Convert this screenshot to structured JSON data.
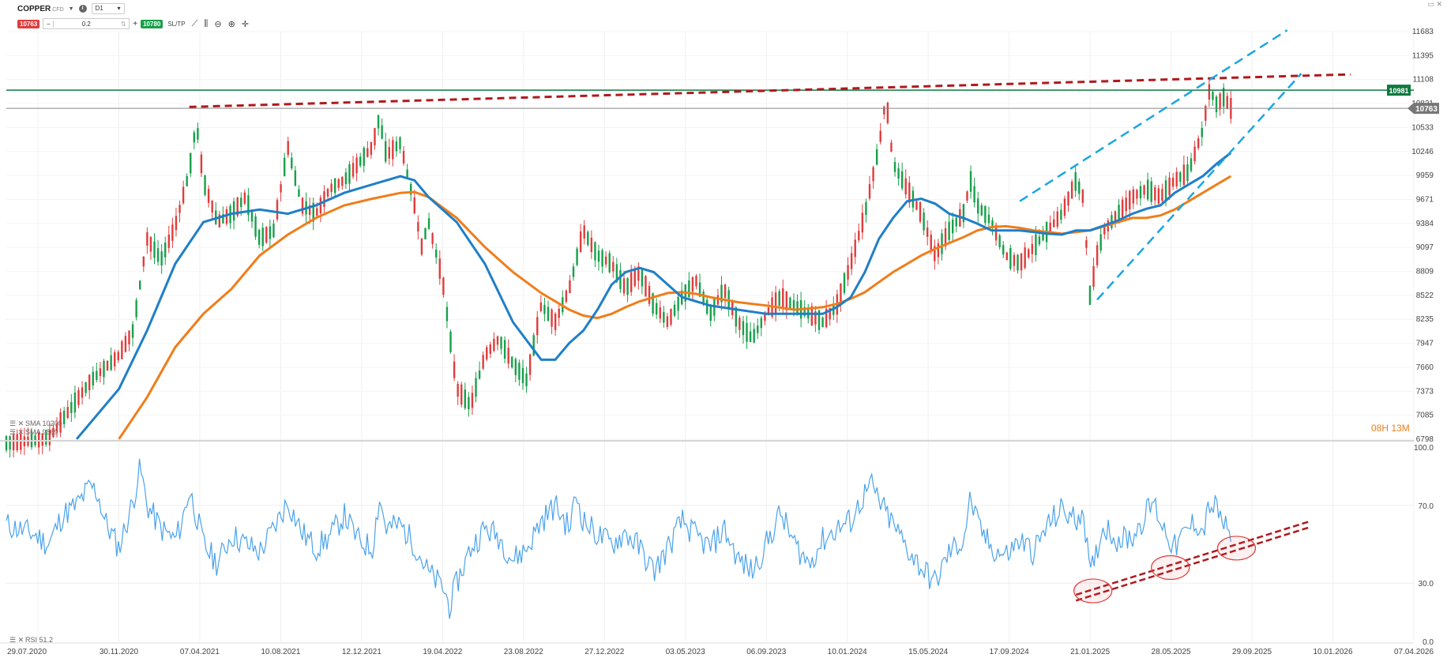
{
  "instrument": {
    "symbol": "COPPER",
    "type": "CFD",
    "timeframe": "D1"
  },
  "trade": {
    "sell_price": "10763",
    "volume": "0.2",
    "buy_price": "10780",
    "sltp_label": "SL/TP",
    "minus": "−",
    "plus": "+"
  },
  "icons": [
    "chevron-down-icon",
    "info-icon",
    "line-chart-icon",
    "candles-icon",
    "zoom-out-icon",
    "zoom-in-icon",
    "crosshair-icon"
  ],
  "colors": {
    "candle_up": "#17a04a",
    "candle_down": "#e03c3c",
    "sma_fast": "#1f7fc8",
    "sma_slow": "#f07d1a",
    "resistance": "#b0191e",
    "channel": "#1aa6e0",
    "rsi": "#4aa3ec",
    "level_line": "#0d7a3f"
  },
  "chart_data": [
    {
      "type": "line",
      "name": "price_panel",
      "y_ticks": [
        11683,
        11395,
        11108,
        10821,
        10533,
        10246,
        9959,
        9671,
        9384,
        9097,
        8809,
        8522,
        8235,
        7947,
        7660,
        7373,
        7085,
        6798
      ],
      "ylim": [
        6798,
        11683
      ],
      "x_dates": [
        "29.07.2020",
        "30.11.2020",
        "07.04.2021",
        "10.08.2021",
        "12.12.2021",
        "19.04.2022",
        "23.08.2022",
        "27.12.2022",
        "03.05.2023",
        "06.09.2023",
        "10.01.2024",
        "15.05.2024",
        "17.09.2024",
        "21.01.2025",
        "28.05.2025",
        "29.09.2025",
        "10.01.2026",
        "07.04.2026"
      ],
      "price_markers": {
        "level": "10981",
        "current": "10763"
      },
      "legend": [
        "SMA 10200",
        "SMA 9869"
      ],
      "timer": {
        "hours": "08H",
        "minutes": "13M"
      },
      "close_approx": [
        [
          0,
          6750
        ],
        [
          0.03,
          6800
        ],
        [
          0.06,
          7500
        ],
        [
          0.08,
          7800
        ],
        [
          0.09,
          8100
        ],
        [
          0.1,
          9200
        ],
        [
          0.11,
          8950
        ],
        [
          0.12,
          9350
        ],
        [
          0.13,
          10000
        ],
        [
          0.135,
          10600
        ],
        [
          0.14,
          9900
        ],
        [
          0.15,
          9400
        ],
        [
          0.16,
          9500
        ],
        [
          0.17,
          9700
        ],
        [
          0.18,
          9200
        ],
        [
          0.19,
          9300
        ],
        [
          0.2,
          10300
        ],
        [
          0.21,
          9600
        ],
        [
          0.22,
          9500
        ],
        [
          0.23,
          9800
        ],
        [
          0.24,
          9900
        ],
        [
          0.26,
          10300
        ],
        [
          0.265,
          10650
        ],
        [
          0.27,
          10200
        ],
        [
          0.28,
          10350
        ],
        [
          0.29,
          9600
        ],
        [
          0.295,
          9100
        ],
        [
          0.3,
          9400
        ],
        [
          0.31,
          8700
        ],
        [
          0.32,
          7400
        ],
        [
          0.33,
          7200
        ],
        [
          0.34,
          7800
        ],
        [
          0.35,
          8000
        ],
        [
          0.36,
          7700
        ],
        [
          0.37,
          7500
        ],
        [
          0.38,
          8400
        ],
        [
          0.39,
          8200
        ],
        [
          0.4,
          8600
        ],
        [
          0.41,
          9300
        ],
        [
          0.42,
          9000
        ],
        [
          0.43,
          8900
        ],
        [
          0.44,
          8600
        ],
        [
          0.45,
          8800
        ],
        [
          0.46,
          8400
        ],
        [
          0.47,
          8200
        ],
        [
          0.48,
          8500
        ],
        [
          0.49,
          8700
        ],
        [
          0.5,
          8300
        ],
        [
          0.51,
          8600
        ],
        [
          0.52,
          8200
        ],
        [
          0.53,
          8000
        ],
        [
          0.54,
          8300
        ],
        [
          0.55,
          8500
        ],
        [
          0.56,
          8400
        ],
        [
          0.57,
          8300
        ],
        [
          0.58,
          8200
        ],
        [
          0.59,
          8400
        ],
        [
          0.6,
          8900
        ],
        [
          0.61,
          9500
        ],
        [
          0.62,
          10300
        ],
        [
          0.625,
          10900
        ],
        [
          0.63,
          10100
        ],
        [
          0.64,
          9800
        ],
        [
          0.65,
          9500
        ],
        [
          0.66,
          9000
        ],
        [
          0.67,
          9300
        ],
        [
          0.68,
          9500
        ],
        [
          0.685,
          9900
        ],
        [
          0.69,
          9600
        ],
        [
          0.7,
          9400
        ],
        [
          0.71,
          9000
        ],
        [
          0.72,
          8900
        ],
        [
          0.73,
          9100
        ],
        [
          0.74,
          9300
        ],
        [
          0.75,
          9500
        ],
        [
          0.76,
          9900
        ],
        [
          0.765,
          9700
        ],
        [
          0.77,
          8500
        ],
        [
          0.775,
          9000
        ],
        [
          0.78,
          9300
        ],
        [
          0.79,
          9500
        ],
        [
          0.8,
          9700
        ],
        [
          0.81,
          9800
        ],
        [
          0.82,
          9700
        ],
        [
          0.83,
          9900
        ],
        [
          0.84,
          10000
        ],
        [
          0.85,
          10500
        ],
        [
          0.855,
          11000
        ],
        [
          0.86,
          10800
        ],
        [
          0.865,
          10900
        ],
        [
          0.87,
          10763
        ]
      ],
      "sma_fast_approx": [
        [
          0.05,
          6800
        ],
        [
          0.08,
          7400
        ],
        [
          0.1,
          8100
        ],
        [
          0.12,
          8900
        ],
        [
          0.14,
          9400
        ],
        [
          0.16,
          9500
        ],
        [
          0.18,
          9550
        ],
        [
          0.2,
          9500
        ],
        [
          0.22,
          9600
        ],
        [
          0.24,
          9750
        ],
        [
          0.26,
          9850
        ],
        [
          0.28,
          9950
        ],
        [
          0.29,
          9900
        ],
        [
          0.3,
          9700
        ],
        [
          0.32,
          9400
        ],
        [
          0.34,
          8900
        ],
        [
          0.36,
          8200
        ],
        [
          0.38,
          7750
        ],
        [
          0.39,
          7750
        ],
        [
          0.4,
          7950
        ],
        [
          0.41,
          8100
        ],
        [
          0.42,
          8350
        ],
        [
          0.43,
          8650
        ],
        [
          0.44,
          8800
        ],
        [
          0.45,
          8850
        ],
        [
          0.46,
          8800
        ],
        [
          0.47,
          8650
        ],
        [
          0.48,
          8500
        ],
        [
          0.49,
          8450
        ],
        [
          0.5,
          8400
        ],
        [
          0.52,
          8350
        ],
        [
          0.54,
          8300
        ],
        [
          0.56,
          8300
        ],
        [
          0.58,
          8300
        ],
        [
          0.59,
          8380
        ],
        [
          0.6,
          8500
        ],
        [
          0.61,
          8800
        ],
        [
          0.62,
          9200
        ],
        [
          0.63,
          9450
        ],
        [
          0.64,
          9650
        ],
        [
          0.65,
          9680
        ],
        [
          0.66,
          9620
        ],
        [
          0.67,
          9500
        ],
        [
          0.68,
          9450
        ],
        [
          0.69,
          9380
        ],
        [
          0.7,
          9300
        ],
        [
          0.71,
          9300
        ],
        [
          0.72,
          9300
        ],
        [
          0.73,
          9280
        ],
        [
          0.74,
          9260
        ],
        [
          0.75,
          9250
        ],
        [
          0.76,
          9300
        ],
        [
          0.77,
          9300
        ],
        [
          0.78,
          9360
        ],
        [
          0.79,
          9420
        ],
        [
          0.8,
          9500
        ],
        [
          0.81,
          9560
        ],
        [
          0.82,
          9600
        ],
        [
          0.83,
          9750
        ],
        [
          0.84,
          9850
        ],
        [
          0.85,
          9950
        ],
        [
          0.86,
          10100
        ],
        [
          0.87,
          10230
        ]
      ],
      "sma_slow_approx": [
        [
          0.08,
          6800
        ],
        [
          0.1,
          7300
        ],
        [
          0.12,
          7900
        ],
        [
          0.14,
          8300
        ],
        [
          0.16,
          8600
        ],
        [
          0.18,
          9000
        ],
        [
          0.2,
          9250
        ],
        [
          0.22,
          9450
        ],
        [
          0.24,
          9600
        ],
        [
          0.26,
          9680
        ],
        [
          0.28,
          9750
        ],
        [
          0.29,
          9760
        ],
        [
          0.3,
          9700
        ],
        [
          0.32,
          9450
        ],
        [
          0.34,
          9100
        ],
        [
          0.36,
          8800
        ],
        [
          0.38,
          8550
        ],
        [
          0.4,
          8350
        ],
        [
          0.41,
          8280
        ],
        [
          0.42,
          8250
        ],
        [
          0.43,
          8300
        ],
        [
          0.44,
          8380
        ],
        [
          0.45,
          8450
        ],
        [
          0.46,
          8500
        ],
        [
          0.47,
          8550
        ],
        [
          0.48,
          8560
        ],
        [
          0.49,
          8540
        ],
        [
          0.5,
          8500
        ],
        [
          0.52,
          8440
        ],
        [
          0.54,
          8400
        ],
        [
          0.56,
          8350
        ],
        [
          0.58,
          8380
        ],
        [
          0.59,
          8420
        ],
        [
          0.6,
          8480
        ],
        [
          0.61,
          8560
        ],
        [
          0.62,
          8680
        ],
        [
          0.63,
          8800
        ],
        [
          0.64,
          8900
        ],
        [
          0.65,
          9000
        ],
        [
          0.66,
          9080
        ],
        [
          0.67,
          9150
        ],
        [
          0.68,
          9220
        ],
        [
          0.69,
          9300
        ],
        [
          0.7,
          9340
        ],
        [
          0.71,
          9350
        ],
        [
          0.72,
          9330
        ],
        [
          0.73,
          9300
        ],
        [
          0.74,
          9280
        ],
        [
          0.75,
          9260
        ],
        [
          0.76,
          9280
        ],
        [
          0.77,
          9300
        ],
        [
          0.78,
          9350
        ],
        [
          0.79,
          9400
        ],
        [
          0.8,
          9450
        ],
        [
          0.81,
          9450
        ],
        [
          0.82,
          9480
        ],
        [
          0.83,
          9550
        ],
        [
          0.84,
          9650
        ],
        [
          0.85,
          9750
        ],
        [
          0.86,
          9850
        ],
        [
          0.87,
          9950
        ]
      ],
      "annotations": {
        "resistance_line": [
          [
            0.13,
            10780
          ],
          [
            0.955,
            11170
          ]
        ],
        "channel_upper": [
          [
            0.72,
            9650
          ],
          [
            0.91,
            11700
          ]
        ],
        "channel_lower": [
          [
            0.775,
            8470
          ],
          [
            0.92,
            11180
          ]
        ],
        "horizontal_level": 10981,
        "current_price_line": 10763
      }
    },
    {
      "type": "line",
      "name": "rsi_panel",
      "legend": "RSI 51.2",
      "y_ticks": [
        100.0,
        70.0,
        30.0,
        0.0
      ],
      "ylim": [
        0,
        100
      ],
      "values_approx": [
        [
          0,
          60
        ],
        [
          0.02,
          55
        ],
        [
          0.03,
          50
        ],
        [
          0.04,
          65
        ],
        [
          0.05,
          70
        ],
        [
          0.06,
          80
        ],
        [
          0.065,
          76
        ],
        [
          0.07,
          62
        ],
        [
          0.075,
          55
        ],
        [
          0.08,
          48
        ],
        [
          0.085,
          60
        ],
        [
          0.09,
          72
        ],
        [
          0.095,
          90
        ],
        [
          0.1,
          70
        ],
        [
          0.11,
          58
        ],
        [
          0.12,
          52
        ],
        [
          0.125,
          62
        ],
        [
          0.13,
          78
        ],
        [
          0.135,
          65
        ],
        [
          0.14,
          50
        ],
        [
          0.15,
          40
        ],
        [
          0.16,
          55
        ],
        [
          0.17,
          50
        ],
        [
          0.18,
          46
        ],
        [
          0.19,
          58
        ],
        [
          0.2,
          72
        ],
        [
          0.21,
          56
        ],
        [
          0.22,
          48
        ],
        [
          0.23,
          54
        ],
        [
          0.24,
          65
        ],
        [
          0.25,
          52
        ],
        [
          0.26,
          48
        ],
        [
          0.265,
          74
        ],
        [
          0.27,
          58
        ],
        [
          0.28,
          60
        ],
        [
          0.29,
          50
        ],
        [
          0.3,
          35
        ],
        [
          0.31,
          28
        ],
        [
          0.315,
          18
        ],
        [
          0.32,
          30
        ],
        [
          0.33,
          48
        ],
        [
          0.34,
          58
        ],
        [
          0.35,
          54
        ],
        [
          0.36,
          42
        ],
        [
          0.37,
          48
        ],
        [
          0.38,
          62
        ],
        [
          0.39,
          70
        ],
        [
          0.4,
          58
        ],
        [
          0.405,
          76
        ],
        [
          0.41,
          62
        ],
        [
          0.42,
          55
        ],
        [
          0.43,
          50
        ],
        [
          0.44,
          56
        ],
        [
          0.45,
          48
        ],
        [
          0.46,
          36
        ],
        [
          0.47,
          48
        ],
        [
          0.48,
          62
        ],
        [
          0.49,
          54
        ],
        [
          0.5,
          48
        ],
        [
          0.51,
          58
        ],
        [
          0.52,
          42
        ],
        [
          0.53,
          36
        ],
        [
          0.54,
          50
        ],
        [
          0.55,
          66
        ],
        [
          0.56,
          50
        ],
        [
          0.57,
          40
        ],
        [
          0.58,
          52
        ],
        [
          0.59,
          58
        ],
        [
          0.6,
          62
        ],
        [
          0.61,
          76
        ],
        [
          0.615,
          80
        ],
        [
          0.62,
          72
        ],
        [
          0.63,
          60
        ],
        [
          0.64,
          48
        ],
        [
          0.65,
          38
        ],
        [
          0.66,
          30
        ],
        [
          0.67,
          46
        ],
        [
          0.68,
          52
        ],
        [
          0.685,
          74
        ],
        [
          0.69,
          60
        ],
        [
          0.7,
          48
        ],
        [
          0.71,
          44
        ],
        [
          0.72,
          52
        ],
        [
          0.73,
          46
        ],
        [
          0.74,
          60
        ],
        [
          0.75,
          68
        ],
        [
          0.76,
          62
        ],
        [
          0.765,
          70
        ],
        [
          0.77,
          32
        ],
        [
          0.775,
          48
        ],
        [
          0.78,
          60
        ],
        [
          0.79,
          52
        ],
        [
          0.8,
          54
        ],
        [
          0.81,
          66
        ],
        [
          0.815,
          72
        ],
        [
          0.82,
          62
        ],
        [
          0.83,
          48
        ],
        [
          0.84,
          58
        ],
        [
          0.845,
          62
        ],
        [
          0.85,
          56
        ],
        [
          0.855,
          70
        ],
        [
          0.86,
          68
        ],
        [
          0.865,
          60
        ],
        [
          0.87,
          51.2
        ]
      ],
      "annotations": {
        "support_line_1": [
          [
            0.76,
            24
          ],
          [
            0.927,
            62
          ]
        ],
        "support_line_2": [
          [
            0.76,
            21
          ],
          [
            0.927,
            59
          ]
        ],
        "circles": [
          [
            0.772,
            26
          ],
          [
            0.827,
            38
          ],
          [
            0.874,
            48
          ]
        ]
      }
    }
  ]
}
